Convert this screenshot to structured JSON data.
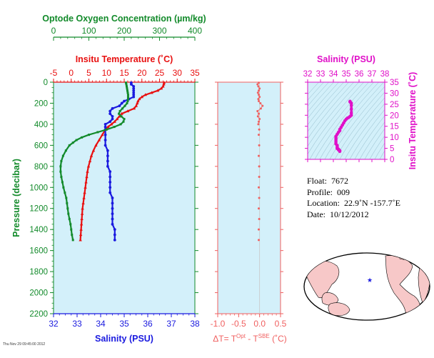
{
  "colors": {
    "oxygen": "#128a2a",
    "temperature": "#e81010",
    "salinity": "#1a1adf",
    "dt": "#f06060",
    "ts": "#e010c8",
    "panel_bg": "#d3f0fa",
    "land": "#f7c8c8"
  },
  "chart_data": [
    {
      "type": "line",
      "title": "",
      "oxygen_axis": {
        "label": "Optode Oxygen Concentration (µm/kg)",
        "range": [
          0,
          400
        ],
        "ticks": [
          "0",
          "100",
          "200",
          "300",
          "400"
        ]
      },
      "temperature_axis": {
        "label": "Insitu Temperature (˚C)",
        "range": [
          -5,
          35
        ],
        "ticks": [
          "-5",
          "0",
          "5",
          "10",
          "15",
          "20",
          "25",
          "30",
          "35"
        ]
      },
      "salinity_axis": {
        "label": "Salinity (PSU)",
        "range": [
          32,
          38
        ],
        "ticks": [
          "32",
          "33",
          "34",
          "35",
          "36",
          "37",
          "38"
        ]
      },
      "pressure_axis": {
        "label": "Pressure (decibar)",
        "range": [
          0,
          2200
        ],
        "reversed": true,
        "ticks": [
          "0",
          "200",
          "400",
          "600",
          "800",
          "1000",
          "1200",
          "1400",
          "1600",
          "1800",
          "2000",
          "2200"
        ]
      },
      "series": [
        {
          "key": "temperature",
          "points": [
            [
              5,
              26.3
            ],
            [
              20,
              26.2
            ],
            [
              40,
              26.0
            ],
            [
              60,
              25.5
            ],
            [
              80,
              24.5
            ],
            [
              100,
              22.8
            ],
            [
              120,
              21.0
            ],
            [
              140,
              20.0
            ],
            [
              160,
              19.3
            ],
            [
              180,
              18.9
            ],
            [
              200,
              18.7
            ],
            [
              225,
              18.4
            ],
            [
              250,
              17.8
            ],
            [
              275,
              16.0
            ],
            [
              300,
              14.3
            ],
            [
              325,
              13.6
            ],
            [
              350,
              13.0
            ],
            [
              375,
              12.3
            ],
            [
              400,
              11.4
            ],
            [
              425,
              10.4
            ],
            [
              450,
              9.7
            ],
            [
              500,
              8.8
            ],
            [
              550,
              7.9
            ],
            [
              600,
              7.0
            ],
            [
              650,
              6.3
            ],
            [
              700,
              5.7
            ],
            [
              750,
              5.3
            ],
            [
              800,
              4.9
            ],
            [
              850,
              4.6
            ],
            [
              900,
              4.4
            ],
            [
              950,
              4.2
            ],
            [
              1000,
              4.0
            ],
            [
              1050,
              3.8
            ],
            [
              1100,
              3.6
            ],
            [
              1150,
              3.4
            ],
            [
              1200,
              3.2
            ],
            [
              1250,
              3.1
            ],
            [
              1300,
              3.0
            ],
            [
              1350,
              2.9
            ],
            [
              1400,
              2.8
            ],
            [
              1450,
              2.7
            ],
            [
              1500,
              2.6
            ]
          ]
        },
        {
          "key": "salinity",
          "points": [
            [
              5,
              35.3
            ],
            [
              20,
              35.3
            ],
            [
              40,
              35.4
            ],
            [
              60,
              35.4
            ],
            [
              80,
              35.4
            ],
            [
              100,
              35.4
            ],
            [
              120,
              35.4
            ],
            [
              140,
              35.4
            ],
            [
              160,
              35.2
            ],
            [
              180,
              35.0
            ],
            [
              200,
              34.9
            ],
            [
              225,
              34.8
            ],
            [
              250,
              34.5
            ],
            [
              275,
              34.4
            ],
            [
              300,
              34.4
            ],
            [
              325,
              34.5
            ],
            [
              350,
              34.5
            ],
            [
              375,
              34.4
            ],
            [
              400,
              34.2
            ],
            [
              425,
              34.2
            ],
            [
              450,
              34.2
            ],
            [
              500,
              34.2
            ],
            [
              550,
              34.2
            ],
            [
              600,
              34.2
            ],
            [
              650,
              34.3
            ],
            [
              700,
              34.3
            ],
            [
              750,
              34.3
            ],
            [
              800,
              34.3
            ],
            [
              850,
              34.4
            ],
            [
              900,
              34.4
            ],
            [
              950,
              34.4
            ],
            [
              1000,
              34.4
            ],
            [
              1050,
              34.4
            ],
            [
              1100,
              34.5
            ],
            [
              1150,
              34.5
            ],
            [
              1200,
              34.5
            ],
            [
              1250,
              34.5
            ],
            [
              1300,
              34.5
            ],
            [
              1350,
              34.5
            ],
            [
              1400,
              34.6
            ],
            [
              1450,
              34.6
            ],
            [
              1500,
              34.6
            ]
          ]
        },
        {
          "key": "oxygen",
          "points": [
            [
              5,
              205
            ],
            [
              20,
              206
            ],
            [
              40,
              207
            ],
            [
              60,
              208
            ],
            [
              80,
              209
            ],
            [
              100,
              210
            ],
            [
              120,
              211
            ],
            [
              140,
              211
            ],
            [
              160,
              211
            ],
            [
              180,
              210
            ],
            [
              200,
              208
            ],
            [
              225,
              202
            ],
            [
              250,
              195
            ],
            [
              275,
              188
            ],
            [
              300,
              185
            ],
            [
              325,
              192
            ],
            [
              350,
              200
            ],
            [
              375,
              198
            ],
            [
              400,
              190
            ],
            [
              425,
              172
            ],
            [
              450,
              150
            ],
            [
              475,
              125
            ],
            [
              500,
              100
            ],
            [
              525,
              80
            ],
            [
              550,
              65
            ],
            [
              575,
              55
            ],
            [
              600,
              45
            ],
            [
              650,
              35
            ],
            [
              700,
              27
            ],
            [
              750,
              22
            ],
            [
              800,
              20
            ],
            [
              850,
              20
            ],
            [
              900,
              22
            ],
            [
              950,
              25
            ],
            [
              1000,
              28
            ],
            [
              1050,
              32
            ],
            [
              1100,
              36
            ],
            [
              1150,
              38
            ],
            [
              1200,
              40
            ],
            [
              1250,
              42
            ],
            [
              1300,
              45
            ],
            [
              1350,
              48
            ],
            [
              1400,
              50
            ],
            [
              1450,
              52
            ],
            [
              1500,
              55
            ]
          ]
        }
      ]
    },
    {
      "type": "scatter",
      "title": "",
      "x_axis": {
        "label": "ΔT= T^Opt - T^SBE (˚C)",
        "range": [
          -1.0,
          0.5
        ],
        "ticks": [
          "-1.0",
          "-0.5",
          "0.0",
          "0.5"
        ]
      },
      "pressure_axis": {
        "range": [
          0,
          2200
        ],
        "reversed": true
      },
      "points": [
        [
          5,
          -0.02
        ],
        [
          20,
          -0.05
        ],
        [
          40,
          -0.03
        ],
        [
          60,
          0.0
        ],
        [
          80,
          -0.02
        ],
        [
          100,
          -0.04
        ],
        [
          120,
          -0.02
        ],
        [
          140,
          0.0
        ],
        [
          160,
          -0.03
        ],
        [
          180,
          -0.02
        ],
        [
          200,
          0.02
        ],
        [
          225,
          0.07
        ],
        [
          250,
          0.03
        ],
        [
          275,
          -0.05
        ],
        [
          300,
          -0.02
        ],
        [
          325,
          -0.04
        ],
        [
          350,
          0.0
        ],
        [
          375,
          -0.02
        ],
        [
          400,
          -0.03
        ],
        [
          450,
          -0.01
        ],
        [
          500,
          -0.02
        ],
        [
          600,
          -0.01
        ],
        [
          700,
          -0.02
        ],
        [
          800,
          -0.01
        ],
        [
          900,
          -0.01
        ],
        [
          1000,
          -0.02
        ],
        [
          1100,
          -0.01
        ],
        [
          1200,
          -0.02
        ],
        [
          1300,
          -0.01
        ],
        [
          1400,
          -0.02
        ],
        [
          1500,
          -0.02
        ]
      ]
    },
    {
      "type": "scatter",
      "title": "",
      "x_axis": {
        "label": "Salinity (PSU)",
        "range": [
          32,
          38
        ],
        "ticks": [
          "32",
          "33",
          "34",
          "35",
          "36",
          "37",
          "38"
        ]
      },
      "y_axis": {
        "label": "Insitu Temperature (˚C)",
        "range": [
          0,
          35
        ],
        "ticks": [
          "0",
          "5",
          "10",
          "15",
          "20",
          "25",
          "30",
          "35"
        ]
      },
      "points": [
        [
          35.3,
          26.3
        ],
        [
          35.3,
          26.0
        ],
        [
          35.4,
          25.5
        ],
        [
          35.4,
          24.5
        ],
        [
          35.4,
          22.8
        ],
        [
          35.4,
          21.0
        ],
        [
          35.4,
          20.0
        ],
        [
          35.3,
          19.5
        ],
        [
          35.2,
          19.0
        ],
        [
          35.1,
          18.7
        ],
        [
          35.0,
          18.2
        ],
        [
          34.9,
          17.5
        ],
        [
          34.8,
          16.5
        ],
        [
          34.7,
          15.5
        ],
        [
          34.6,
          14.5
        ],
        [
          34.5,
          13.6
        ],
        [
          34.5,
          13.0
        ],
        [
          34.4,
          12.3
        ],
        [
          34.3,
          11.4
        ],
        [
          34.2,
          10.4
        ],
        [
          34.2,
          9.7
        ],
        [
          34.2,
          8.8
        ],
        [
          34.2,
          7.9
        ],
        [
          34.2,
          7.0
        ],
        [
          34.3,
          6.3
        ],
        [
          34.3,
          5.7
        ],
        [
          34.3,
          5.3
        ],
        [
          34.3,
          4.9
        ],
        [
          34.4,
          4.6
        ],
        [
          34.4,
          4.3
        ],
        [
          34.5,
          4.0
        ],
        [
          34.5,
          3.6
        ]
      ]
    }
  ],
  "info": {
    "float_label": "Float:",
    "float_value": "7672",
    "profile_label": "Profile:",
    "profile_value": "009",
    "location_label": "Location:",
    "location_value": "22.9˚N  -157.7˚E",
    "date_label": "Date:",
    "date_value": "10/12/2012"
  },
  "footer_tiny": "Thu Nov 29 09:45:00 2012",
  "map": {
    "marker_symbol": "star",
    "marker_lat": 22.9,
    "marker_lon": -157.7,
    "projection": "pacific-centered"
  }
}
